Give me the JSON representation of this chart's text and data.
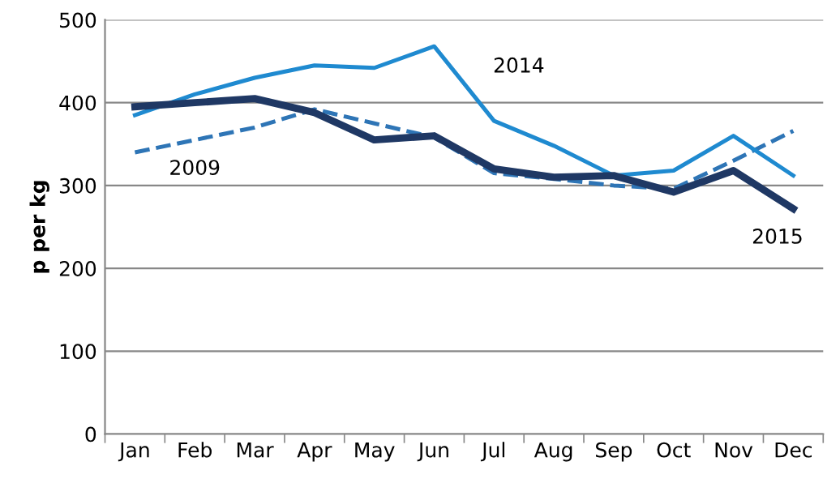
{
  "chart_data": {
    "type": "line",
    "ylabel": "p per kg",
    "categories": [
      "Jan",
      "Feb",
      "Mar",
      "Apr",
      "May",
      "Jun",
      "Jul",
      "Aug",
      "Sep",
      "Oct",
      "Nov",
      "Dec"
    ],
    "series": [
      {
        "name": "2009",
        "color": "#2e75b6",
        "line_style": "dashed",
        "values": [
          340,
          355,
          370,
          392,
          375,
          358,
          315,
          308,
          300,
          296,
          330,
          366
        ]
      },
      {
        "name": "2014",
        "color": "#1f8ad0",
        "line_style": "solid",
        "values": [
          385,
          410,
          430,
          445,
          442,
          468,
          378,
          348,
          312,
          318,
          360,
          312
        ]
      },
      {
        "name": "2015",
        "color": "#1f3864",
        "line_style": "solid",
        "values": [
          395,
          400,
          405,
          388,
          355,
          360,
          320,
          310,
          312,
          292,
          318,
          272
        ]
      }
    ],
    "ylim": [
      0,
      500
    ],
    "yticks": [
      0,
      100,
      200,
      300,
      400,
      500
    ],
    "grid": "y",
    "legend": false,
    "marker": "none"
  }
}
